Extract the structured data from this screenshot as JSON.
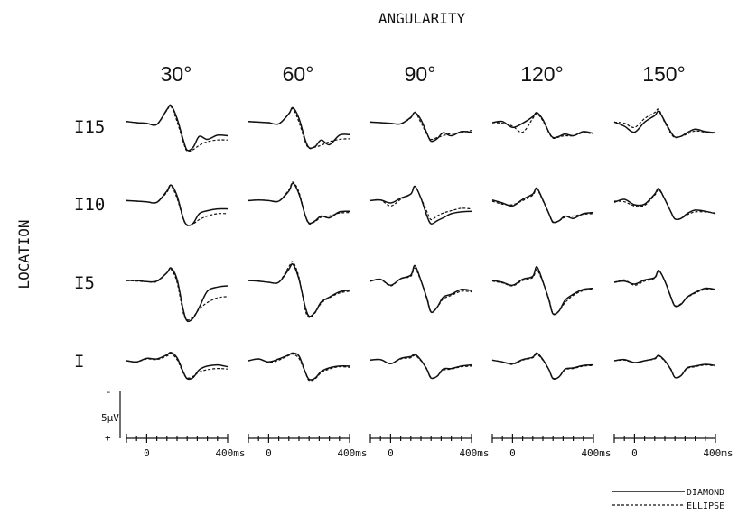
{
  "chart_data": {
    "type": "line",
    "title": "ANGULARITY",
    "ylabel": "LOCATION",
    "columns": [
      "30°",
      "60°",
      "90°",
      "120°",
      "150°"
    ],
    "rows": [
      "I15",
      "I10",
      "I5",
      "I"
    ],
    "scale_label": "5μV",
    "scale_minus": "-",
    "scale_plus": "+",
    "x_ticks": [
      "0",
      "400ms"
    ],
    "xlim": [
      -100,
      400
    ],
    "legend": [
      {
        "name": "DIAMOND",
        "style": "solid"
      },
      {
        "name": "ELLIPSE",
        "style": "dashed"
      }
    ],
    "x": [
      -100,
      -50,
      0,
      50,
      100,
      120,
      150,
      180,
      200,
      230,
      260,
      300,
      350,
      400
    ],
    "series": [
      [
        {
          "solid": [
            0.5,
            0.3,
            0.2,
            0.0,
            2.5,
            3.2,
            1.0,
            -2.5,
            -4.3,
            -3.8,
            -2.0,
            -2.5,
            -1.8,
            -1.9
          ],
          "dashed": [
            0.5,
            0.3,
            0.2,
            0.0,
            2.4,
            3.0,
            0.5,
            -2.8,
            -4.5,
            -4.2,
            -3.5,
            -2.9,
            -2.6,
            -2.6
          ]
        },
        {
          "solid": [
            0.5,
            0.4,
            0.3,
            0.1,
            1.8,
            2.8,
            1.0,
            -2.5,
            -3.9,
            -3.7,
            -2.6,
            -3.4,
            -1.8,
            -1.7
          ],
          "dashed": [
            0.5,
            0.4,
            0.3,
            0.1,
            1.8,
            2.6,
            0.4,
            -2.8,
            -4.0,
            -3.8,
            -3.5,
            -2.9,
            -2.5,
            -2.4
          ]
        },
        {
          "solid": [
            0.4,
            0.3,
            0.2,
            0.1,
            1.2,
            2.0,
            0.8,
            -1.5,
            -2.8,
            -2.4,
            -1.4,
            -1.9,
            -1.2,
            -1.3
          ],
          "dashed": [
            0.4,
            0.3,
            0.2,
            0.1,
            1.1,
            2.1,
            0.3,
            -1.7,
            -2.5,
            -2.2,
            -1.9,
            -1.5,
            -1.4,
            -1.0
          ]
        },
        {
          "solid": [
            0.3,
            0.5,
            -0.5,
            0.2,
            1.3,
            2.0,
            0.8,
            -1.3,
            -2.2,
            -2.0,
            -1.6,
            -1.9,
            -1.2,
            -1.5
          ],
          "dashed": [
            0.3,
            0.2,
            -0.3,
            -1.3,
            1.0,
            1.8,
            0.6,
            -1.4,
            -2.3,
            -2.1,
            -1.9,
            -1.9,
            -1.4,
            -1.6
          ]
        },
        {
          "solid": [
            0.4,
            -0.3,
            -1.3,
            0.4,
            1.5,
            2.2,
            0.5,
            -1.3,
            -2.1,
            -2.0,
            -1.4,
            -0.8,
            -1.2,
            -1.4
          ],
          "dashed": [
            0.4,
            0.2,
            -0.5,
            1.0,
            2.0,
            2.5,
            0.3,
            -1.5,
            -2.2,
            -2.0,
            -1.6,
            -1.1,
            -1.3,
            -1.5
          ]
        }
      ],
      [
        {
          "solid": [
            0.4,
            0.3,
            0.2,
            0.1,
            2.0,
            3.0,
            1.2,
            -2.5,
            -3.7,
            -3.4,
            -1.8,
            -1.3,
            -1.0,
            -1.0
          ],
          "dashed": [
            0.4,
            0.3,
            0.2,
            0.1,
            1.8,
            2.9,
            0.8,
            -2.6,
            -3.8,
            -3.5,
            -2.8,
            -2.2,
            -1.8,
            -1.8
          ]
        },
        {
          "solid": [
            0.4,
            0.5,
            0.4,
            0.3,
            2.0,
            3.3,
            1.5,
            -2.0,
            -3.4,
            -3.0,
            -2.2,
            -2.5,
            -1.5,
            -1.4
          ],
          "dashed": [
            0.4,
            0.5,
            0.4,
            0.3,
            2.2,
            3.5,
            1.8,
            -2.0,
            -3.5,
            -3.1,
            -2.4,
            -2.2,
            -1.7,
            -1.6
          ]
        },
        {
          "solid": [
            0.4,
            0.5,
            0.0,
            0.8,
            1.5,
            2.8,
            0.8,
            -2.2,
            -3.5,
            -3.0,
            -2.5,
            -1.8,
            -1.5,
            -1.4
          ],
          "dashed": [
            0.4,
            0.5,
            -0.5,
            0.6,
            1.5,
            2.8,
            0.8,
            -1.5,
            -2.8,
            -2.2,
            -1.7,
            -1.3,
            -0.9,
            -1.0
          ]
        },
        {
          "solid": [
            0.5,
            0.0,
            -0.5,
            0.6,
            1.5,
            2.5,
            0.5,
            -1.8,
            -3.2,
            -3.0,
            -2.2,
            -2.6,
            -1.8,
            -1.6
          ],
          "dashed": [
            0.3,
            -0.2,
            -0.3,
            0.4,
            1.3,
            2.3,
            0.4,
            -1.8,
            -3.3,
            -3.0,
            -2.4,
            -2.2,
            -1.9,
            -1.8
          ]
        },
        {
          "solid": [
            0.1,
            0.6,
            -0.3,
            -0.2,
            1.5,
            2.4,
            0.6,
            -1.5,
            -2.7,
            -2.6,
            -1.8,
            -1.2,
            -1.4,
            -1.8
          ],
          "dashed": [
            0.3,
            0.2,
            -0.5,
            -0.4,
            1.3,
            2.2,
            0.6,
            -1.5,
            -2.7,
            -2.6,
            -2.0,
            -1.5,
            -1.5,
            -1.7
          ]
        }
      ],
      [
        {
          "solid": [
            0.3,
            0.3,
            0.1,
            0.2,
            1.6,
            2.4,
            0.5,
            -4.5,
            -6.5,
            -6.0,
            -4.2,
            -1.5,
            -0.8,
            -0.6
          ],
          "dashed": [
            0.3,
            0.2,
            0.1,
            0.1,
            1.6,
            2.2,
            0.0,
            -5.0,
            -6.3,
            -5.8,
            -4.5,
            -3.4,
            -2.6,
            -2.4
          ]
        },
        {
          "solid": [
            0.3,
            0.2,
            0.0,
            0.0,
            2.2,
            3.0,
            0.5,
            -4.0,
            -5.7,
            -5.0,
            -3.3,
            -2.5,
            -1.6,
            -1.3
          ],
          "dashed": [
            0.3,
            0.2,
            0.0,
            0.0,
            2.6,
            3.4,
            0.8,
            -4.5,
            -5.9,
            -5.1,
            -3.5,
            -2.6,
            -1.8,
            -1.5
          ]
        },
        {
          "solid": [
            0.2,
            0.5,
            -0.5,
            0.6,
            1.2,
            2.8,
            0.3,
            -2.8,
            -5.0,
            -4.2,
            -2.5,
            -2.0,
            -1.2,
            -1.4
          ],
          "dashed": [
            0.2,
            0.5,
            -0.6,
            0.6,
            1.0,
            2.4,
            0.2,
            -2.6,
            -4.9,
            -4.2,
            -2.8,
            -2.2,
            -1.5,
            -1.6
          ]
        },
        {
          "solid": [
            0.3,
            0.0,
            -0.5,
            0.5,
            1.0,
            2.6,
            0.1,
            -3.0,
            -5.3,
            -4.8,
            -3.0,
            -2.0,
            -1.2,
            -1.0
          ],
          "dashed": [
            0.2,
            -0.1,
            -0.6,
            0.3,
            0.8,
            2.1,
            0.0,
            -2.8,
            -5.2,
            -4.8,
            -3.4,
            -2.2,
            -1.4,
            -1.2
          ]
        },
        {
          "solid": [
            0.0,
            0.2,
            -0.3,
            0.4,
            0.8,
            2.0,
            0.2,
            -2.5,
            -4.0,
            -3.7,
            -2.5,
            -1.7,
            -1.0,
            -1.2
          ],
          "dashed": [
            0.0,
            0.4,
            -0.5,
            0.2,
            0.7,
            1.9,
            0.2,
            -2.4,
            -3.9,
            -3.6,
            -2.6,
            -1.8,
            -1.2,
            -1.3
          ]
        }
      ],
      [
        {
          "solid": [
            0.0,
            -0.2,
            0.4,
            0.3,
            1.0,
            1.4,
            0.5,
            -1.8,
            -3.0,
            -2.8,
            -1.5,
            -0.9,
            -0.7,
            -1.0
          ],
          "dashed": [
            0.0,
            -0.2,
            0.3,
            0.2,
            0.8,
            1.2,
            0.2,
            -2.0,
            -2.9,
            -2.6,
            -1.9,
            -1.5,
            -1.3,
            -1.4
          ]
        },
        {
          "solid": [
            0.0,
            0.3,
            -0.2,
            0.3,
            1.0,
            1.3,
            0.8,
            -1.8,
            -3.1,
            -2.9,
            -1.8,
            -1.2,
            -0.9,
            -0.9
          ],
          "dashed": [
            0.0,
            0.3,
            -0.3,
            0.1,
            0.9,
            1.1,
            0.4,
            -1.9,
            -3.3,
            -3.0,
            -2.0,
            -1.4,
            -1.0,
            -1.1
          ]
        },
        {
          "solid": [
            0.1,
            0.2,
            -0.5,
            0.4,
            0.7,
            1.1,
            0.1,
            -1.5,
            -2.9,
            -2.6,
            -1.4,
            -1.3,
            -0.9,
            -0.7
          ],
          "dashed": [
            0.1,
            0.2,
            -0.5,
            0.3,
            0.5,
            0.9,
            0.0,
            -1.4,
            -2.8,
            -2.6,
            -1.6,
            -1.4,
            -1.0,
            -0.9
          ]
        },
        {
          "solid": [
            0.1,
            -0.2,
            -0.5,
            0.2,
            0.6,
            1.3,
            0.2,
            -1.5,
            -3.0,
            -2.7,
            -1.4,
            -1.2,
            -0.8,
            -0.7
          ],
          "dashed": [
            0.1,
            -0.2,
            -0.6,
            0.1,
            0.5,
            1.1,
            0.1,
            -1.5,
            -2.9,
            -2.7,
            -1.5,
            -1.3,
            -0.9,
            -0.8
          ]
        },
        {
          "solid": [
            0.0,
            0.2,
            -0.3,
            0.0,
            0.4,
            0.9,
            0.0,
            -1.5,
            -2.8,
            -2.5,
            -1.2,
            -0.9,
            -0.6,
            -0.8
          ],
          "dashed": [
            0.0,
            0.1,
            -0.3,
            0.0,
            0.3,
            0.8,
            -0.1,
            -1.4,
            -2.8,
            -2.5,
            -1.3,
            -1.0,
            -0.7,
            -0.9
          ]
        }
      ]
    ]
  }
}
